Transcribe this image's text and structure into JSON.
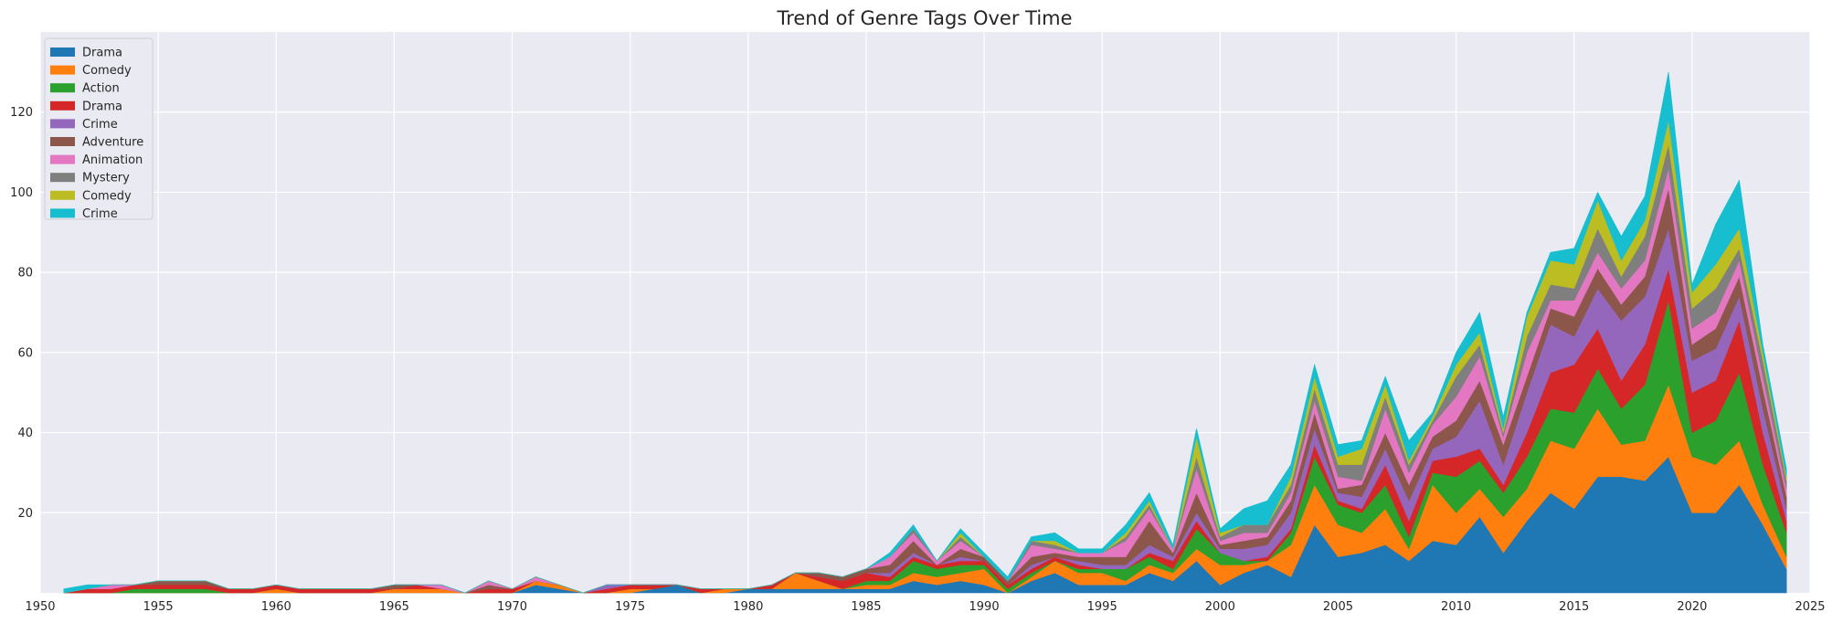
{
  "chart_data": {
    "type": "area",
    "stacked": true,
    "title": "Trend of Genre Tags Over Time",
    "xlabel": "",
    "ylabel": "",
    "xlim": [
      1950,
      2025
    ],
    "ylim": [
      0,
      140
    ],
    "xticks": [
      1950,
      1955,
      1960,
      1965,
      1970,
      1975,
      1980,
      1985,
      1990,
      1995,
      2000,
      2005,
      2010,
      2015,
      2020,
      2025
    ],
    "yticks": [
      20,
      40,
      60,
      80,
      100,
      120
    ],
    "grid": true,
    "legend_position": "top-left",
    "background": "#eaeaf2",
    "x": [
      1951,
      1952,
      1953,
      1954,
      1955,
      1956,
      1957,
      1958,
      1959,
      1960,
      1961,
      1962,
      1963,
      1964,
      1965,
      1966,
      1967,
      1968,
      1969,
      1970,
      1971,
      1972,
      1973,
      1974,
      1975,
      1976,
      1977,
      1978,
      1979,
      1980,
      1981,
      1982,
      1983,
      1984,
      1985,
      1986,
      1987,
      1988,
      1989,
      1990,
      1991,
      1992,
      1993,
      1994,
      1995,
      1996,
      1997,
      1998,
      1999,
      2000,
      2001,
      2002,
      2003,
      2004,
      2005,
      2006,
      2007,
      2008,
      2009,
      2010,
      2011,
      2012,
      2013,
      2014,
      2015,
      2016,
      2017,
      2018,
      2019,
      2020,
      2021,
      2022,
      2023,
      2024
    ],
    "series": [
      {
        "name": "Drama",
        "color": "#1f77b4",
        "values": [
          0,
          0,
          0,
          0,
          0,
          0,
          0,
          0,
          0,
          0,
          0,
          0,
          0,
          0,
          0,
          0,
          0,
          0,
          0,
          0,
          2,
          1,
          0,
          0,
          0,
          1,
          2,
          0,
          0,
          1,
          1,
          1,
          1,
          1,
          1,
          1,
          3,
          2,
          3,
          2,
          0,
          3,
          5,
          2,
          2,
          2,
          5,
          3,
          8,
          2,
          5,
          7,
          4,
          17,
          9,
          10,
          12,
          8,
          13,
          12,
          19,
          10,
          18,
          25,
          21,
          29,
          29,
          28,
          34,
          20,
          20,
          27,
          17,
          6
        ]
      },
      {
        "name": "Comedy",
        "color": "#ff7f0e",
        "values": [
          0,
          0,
          0,
          0,
          0,
          0,
          0,
          0,
          0,
          1,
          0,
          0,
          0,
          0,
          1,
          1,
          1,
          0,
          0,
          0,
          1,
          1,
          0,
          0,
          1,
          0,
          0,
          0,
          1,
          0,
          0,
          4,
          2,
          0,
          1,
          1,
          2,
          2,
          2,
          4,
          0,
          1,
          3,
          3,
          3,
          1,
          2,
          2,
          3,
          5,
          2,
          1,
          8,
          10,
          8,
          5,
          9,
          3,
          14,
          8,
          7,
          9,
          8,
          13,
          15,
          17,
          8,
          10,
          18,
          14,
          12,
          11,
          5,
          3
        ]
      },
      {
        "name": "Action",
        "color": "#2ca02c",
        "values": [
          0,
          0,
          0,
          1,
          1,
          1,
          1,
          0,
          0,
          0,
          0,
          0,
          0,
          0,
          0,
          0,
          0,
          0,
          0,
          0,
          0,
          0,
          0,
          0,
          0,
          0,
          0,
          0,
          0,
          0,
          0,
          0,
          0,
          0,
          1,
          1,
          3,
          2,
          2,
          1,
          1,
          1,
          0,
          1,
          1,
          3,
          2,
          1,
          5,
          3,
          1,
          0,
          3,
          7,
          5,
          5,
          6,
          3,
          3,
          9,
          7,
          6,
          8,
          8,
          9,
          10,
          9,
          14,
          21,
          6,
          11,
          17,
          10,
          6
        ]
      },
      {
        "name": "Drama",
        "color": "#d62728",
        "values": [
          0,
          1,
          1,
          1,
          1,
          1,
          1,
          1,
          1,
          1,
          1,
          1,
          1,
          1,
          0,
          1,
          0,
          0,
          1,
          1,
          0,
          0,
          0,
          1,
          1,
          1,
          0,
          1,
          0,
          0,
          1,
          0,
          1,
          2,
          2,
          1,
          1,
          1,
          1,
          1,
          1,
          1,
          1,
          1,
          0,
          0,
          1,
          2,
          2,
          0,
          0,
          1,
          1,
          3,
          1,
          1,
          5,
          4,
          3,
          5,
          3,
          2,
          6,
          9,
          12,
          10,
          7,
          10,
          8,
          10,
          10,
          13,
          8,
          3
        ]
      },
      {
        "name": "Crime",
        "color": "#9467bd",
        "values": [
          0,
          0,
          0,
          0,
          0,
          0,
          0,
          0,
          0,
          0,
          0,
          0,
          0,
          0,
          0,
          0,
          0,
          0,
          0,
          0,
          0,
          0,
          0,
          1,
          0,
          0,
          0,
          0,
          0,
          0,
          0,
          0,
          0,
          0,
          0,
          1,
          1,
          0,
          1,
          0,
          0,
          1,
          0,
          1,
          1,
          1,
          2,
          1,
          2,
          1,
          3,
          3,
          4,
          4,
          2,
          3,
          4,
          5,
          3,
          5,
          12,
          5,
          10,
          12,
          7,
          10,
          15,
          12,
          10,
          8,
          8,
          6,
          6,
          3
        ]
      },
      {
        "name": "Adventure",
        "color": "#8c564b",
        "values": [
          0,
          0,
          0,
          0,
          1,
          1,
          1,
          0,
          0,
          0,
          0,
          0,
          0,
          0,
          1,
          0,
          0,
          0,
          1,
          0,
          0,
          0,
          0,
          0,
          0,
          0,
          0,
          0,
          0,
          0,
          0,
          0,
          1,
          1,
          1,
          2,
          3,
          0,
          2,
          1,
          1,
          2,
          1,
          1,
          2,
          2,
          6,
          1,
          5,
          1,
          2,
          2,
          3,
          4,
          1,
          3,
          4,
          4,
          3,
          4,
          5,
          5,
          4,
          4,
          5,
          5,
          4,
          5,
          10,
          4,
          5,
          5,
          5,
          3
        ]
      },
      {
        "name": "Animation",
        "color": "#e377c2",
        "values": [
          0,
          0,
          1,
          0,
          0,
          0,
          0,
          0,
          0,
          0,
          0,
          0,
          0,
          0,
          0,
          0,
          1,
          0,
          1,
          0,
          1,
          0,
          0,
          0,
          0,
          0,
          0,
          0,
          0,
          0,
          0,
          0,
          0,
          0,
          0,
          2,
          2,
          1,
          2,
          0,
          0,
          3,
          1,
          1,
          1,
          4,
          3,
          1,
          6,
          1,
          2,
          1,
          2,
          3,
          3,
          1,
          6,
          3,
          3,
          6,
          6,
          2,
          6,
          2,
          4,
          4,
          4,
          4,
          5,
          4,
          4,
          4,
          3,
          2
        ]
      },
      {
        "name": "Mystery",
        "color": "#7f7f7f",
        "values": [
          0,
          0,
          0,
          0,
          0,
          0,
          0,
          0,
          0,
          0,
          0,
          0,
          0,
          0,
          0,
          0,
          0,
          0,
          0,
          0,
          0,
          0,
          0,
          0,
          0,
          0,
          0,
          0,
          0,
          0,
          0,
          0,
          0,
          0,
          0,
          0,
          1,
          0,
          1,
          0,
          0,
          1,
          1,
          0,
          0,
          1,
          1,
          0,
          3,
          1,
          2,
          2,
          2,
          3,
          3,
          4,
          3,
          2,
          1,
          5,
          3,
          1,
          4,
          4,
          3,
          6,
          3,
          6,
          6,
          5,
          6,
          3,
          4,
          2
        ]
      },
      {
        "name": "Comedy",
        "color": "#bcbd22",
        "values": [
          0,
          0,
          0,
          0,
          0,
          0,
          0,
          0,
          0,
          0,
          0,
          0,
          0,
          0,
          0,
          0,
          0,
          0,
          0,
          0,
          0,
          0,
          0,
          0,
          0,
          0,
          0,
          0,
          0,
          0,
          0,
          0,
          0,
          0,
          0,
          0,
          0,
          0,
          1,
          0,
          0,
          0,
          1,
          0,
          0,
          1,
          1,
          0,
          5,
          1,
          0,
          0,
          2,
          3,
          2,
          4,
          3,
          1,
          1,
          3,
          3,
          1,
          5,
          6,
          6,
          7,
          4,
          4,
          6,
          4,
          6,
          5,
          2,
          1
        ]
      },
      {
        "name": "Crime",
        "color": "#17becf",
        "values": [
          1,
          1,
          0,
          0,
          0,
          0,
          0,
          0,
          0,
          0,
          0,
          0,
          0,
          0,
          0,
          0,
          0,
          0,
          0,
          0,
          0,
          0,
          0,
          0,
          0,
          0,
          0,
          0,
          0,
          0,
          0,
          0,
          0,
          0,
          0,
          1,
          1,
          0,
          1,
          1,
          1,
          1,
          2,
          1,
          1,
          2,
          2,
          1,
          2,
          1,
          4,
          6,
          3,
          3,
          3,
          2,
          2,
          5,
          1,
          3,
          5,
          3,
          1,
          2,
          4,
          2,
          6,
          6,
          12,
          2,
          10,
          12,
          2,
          2
        ]
      }
    ]
  }
}
